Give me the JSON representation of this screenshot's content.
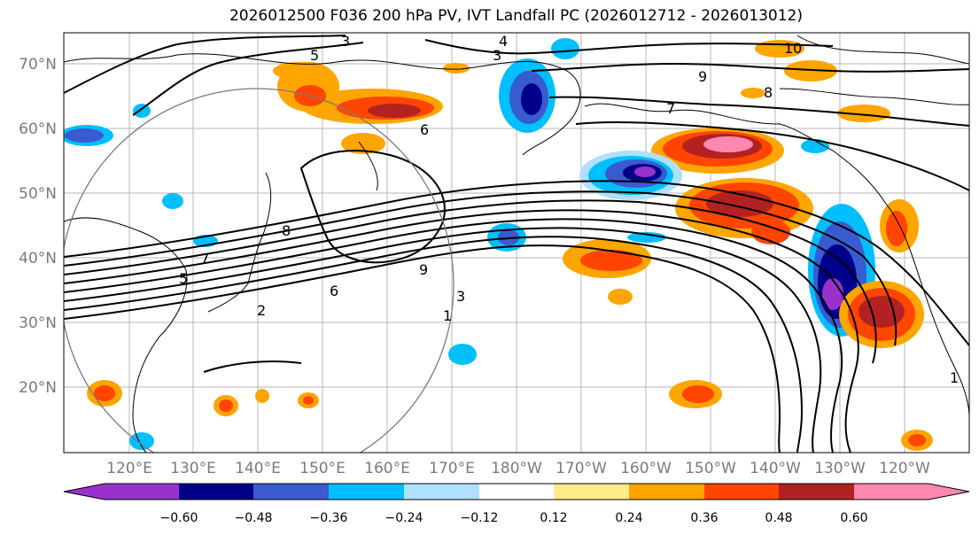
{
  "title": "2026012500 F036 200 hPa PV, IVT Landfall PC (2026012712 - 2026013012)",
  "map": {
    "lat_labels": [
      "70°N",
      "60°N",
      "50°N",
      "40°N",
      "30°N",
      "20°N"
    ],
    "lon_labels": [
      "120°E",
      "130°E",
      "140°E",
      "150°E",
      "160°E",
      "170°E",
      "180°W",
      "170°W",
      "160°W",
      "150°W",
      "140°W",
      "130°W",
      "120°W"
    ],
    "contour_labels": [
      "3",
      "4",
      "5",
      "3",
      "10",
      "9",
      "8",
      "7",
      "6",
      "8",
      "7",
      "5",
      "9",
      "6",
      "3",
      "2",
      "1",
      "1"
    ]
  },
  "colorbar": {
    "tick_labels": [
      "−0.60",
      "−0.48",
      "−0.36",
      "−0.24",
      "−0.12",
      "0.12",
      "0.24",
      "0.36",
      "0.48",
      "0.60"
    ],
    "colors": [
      "#9932cc",
      "#00008b",
      "#3a5bd0",
      "#00bfff",
      "#b0e0ff",
      "#ffffff",
      "#ffeb88",
      "#ffa500",
      "#ff4500",
      "#b22222",
      "#ff88b0"
    ]
  }
}
